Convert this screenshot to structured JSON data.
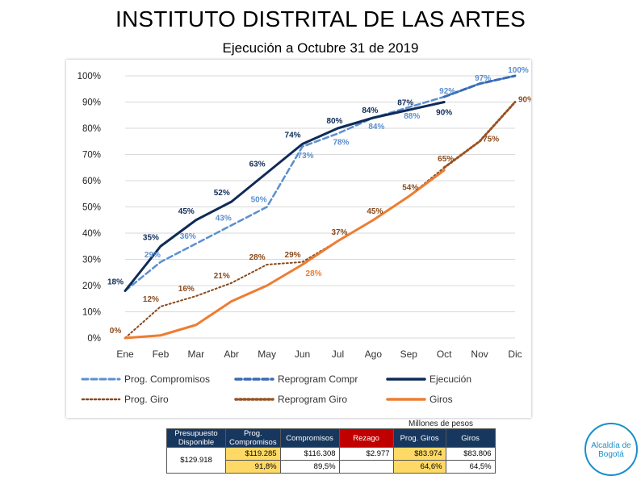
{
  "title": "INSTITUTO DISTRITAL DE LAS ARTES",
  "subtitle": "Ejecución a Octubre 31 de  2019",
  "chart_data": {
    "type": "line",
    "categories": [
      "Ene",
      "Feb",
      "Mar",
      "Abr",
      "May",
      "Jun",
      "Jul",
      "Ago",
      "Sep",
      "Oct",
      "Nov",
      "Dic"
    ],
    "y_ticks": [
      "0%",
      "10%",
      "20%",
      "30%",
      "40%",
      "50%",
      "60%",
      "70%",
      "80%",
      "90%",
      "100%"
    ],
    "ylim": [
      0,
      100
    ],
    "series": [
      {
        "name": "Prog. Compromisos",
        "color": "#5b8fd0",
        "style": "dashed",
        "width": 2.5,
        "values": [
          18,
          29,
          36,
          43,
          50,
          73,
          78,
          84,
          88,
          92,
          97,
          100
        ],
        "labels": [
          "",
          "29%",
          "36%",
          "43%",
          "50%",
          "73%",
          "78%",
          "84%",
          "88%",
          "92%",
          "97%",
          "100%"
        ]
      },
      {
        "name": "Reprogram Compr",
        "color": "#3a6bb2",
        "style": "dashed",
        "width": 3,
        "values": [
          null,
          null,
          null,
          null,
          null,
          null,
          null,
          null,
          null,
          92,
          97,
          100
        ],
        "labels": [
          "",
          "",
          "",
          "",
          "",
          "",
          "",
          "",
          "",
          "",
          "",
          ""
        ]
      },
      {
        "name": "Ejecución",
        "color": "#0f2b57",
        "style": "solid",
        "width": 3,
        "values": [
          18,
          35,
          45,
          52,
          63,
          74,
          80,
          84,
          87,
          90,
          null,
          null
        ],
        "labels": [
          "18%",
          "35%",
          "45%",
          "52%",
          "63%",
          "74%",
          "80%",
          "84%",
          "87%",
          "90%",
          "",
          ""
        ]
      },
      {
        "name": "Prog. Giro",
        "color": "#8a4a1c",
        "style": "dotted",
        "width": 2,
        "values": [
          0,
          12,
          16,
          21,
          28,
          29,
          37,
          45,
          54,
          65,
          75,
          90
        ],
        "labels": [
          "0%",
          "12%",
          "16%",
          "21%",
          "28%",
          "29%",
          "37%",
          "45%",
          "54%",
          "65%",
          "75%",
          "90%"
        ]
      },
      {
        "name": "Reprogram Giro",
        "color": "#9a5223",
        "style": "dotted",
        "width": 3,
        "values": [
          null,
          null,
          null,
          null,
          null,
          null,
          null,
          null,
          null,
          65,
          75,
          90
        ],
        "labels": [
          "",
          "",
          "",
          "",
          "",
          "",
          "",
          "",
          "",
          "",
          "",
          ""
        ]
      },
      {
        "name": "Giros",
        "color": "#ed7d31",
        "style": "solid",
        "width": 3,
        "values": [
          0,
          1,
          5,
          14,
          20,
          28,
          37,
          45,
          54,
          64,
          null,
          null
        ],
        "labels": [
          "",
          "",
          "",
          "",
          "",
          "28%",
          "",
          "",
          "",
          "",
          "",
          ""
        ]
      }
    ],
    "legend": [
      "Prog. Compromisos",
      "Reprogram Compr",
      "Ejecución",
      "Prog. Giro",
      "Reprogram Giro",
      "Giros"
    ],
    "legend_position": "bottom"
  },
  "units_note": "Millones de pesos",
  "summary_table": {
    "headers": [
      "Presupuesto Disponible",
      "Prog. Compromisos",
      "Compromisos",
      "Rezago",
      "Prog. Giros",
      "Giros"
    ],
    "budget": "$129.918",
    "row_values": [
      "$119.285",
      "$116.308",
      "$2.977",
      "$83.974",
      "$83.806"
    ],
    "row_percents": [
      "91,8%",
      "89,5%",
      "",
      "64,6%",
      "64,5%"
    ]
  },
  "logo": {
    "line1": "Alcaldía de",
    "line2": "Bogotá",
    "color": "#1a8fc9"
  }
}
